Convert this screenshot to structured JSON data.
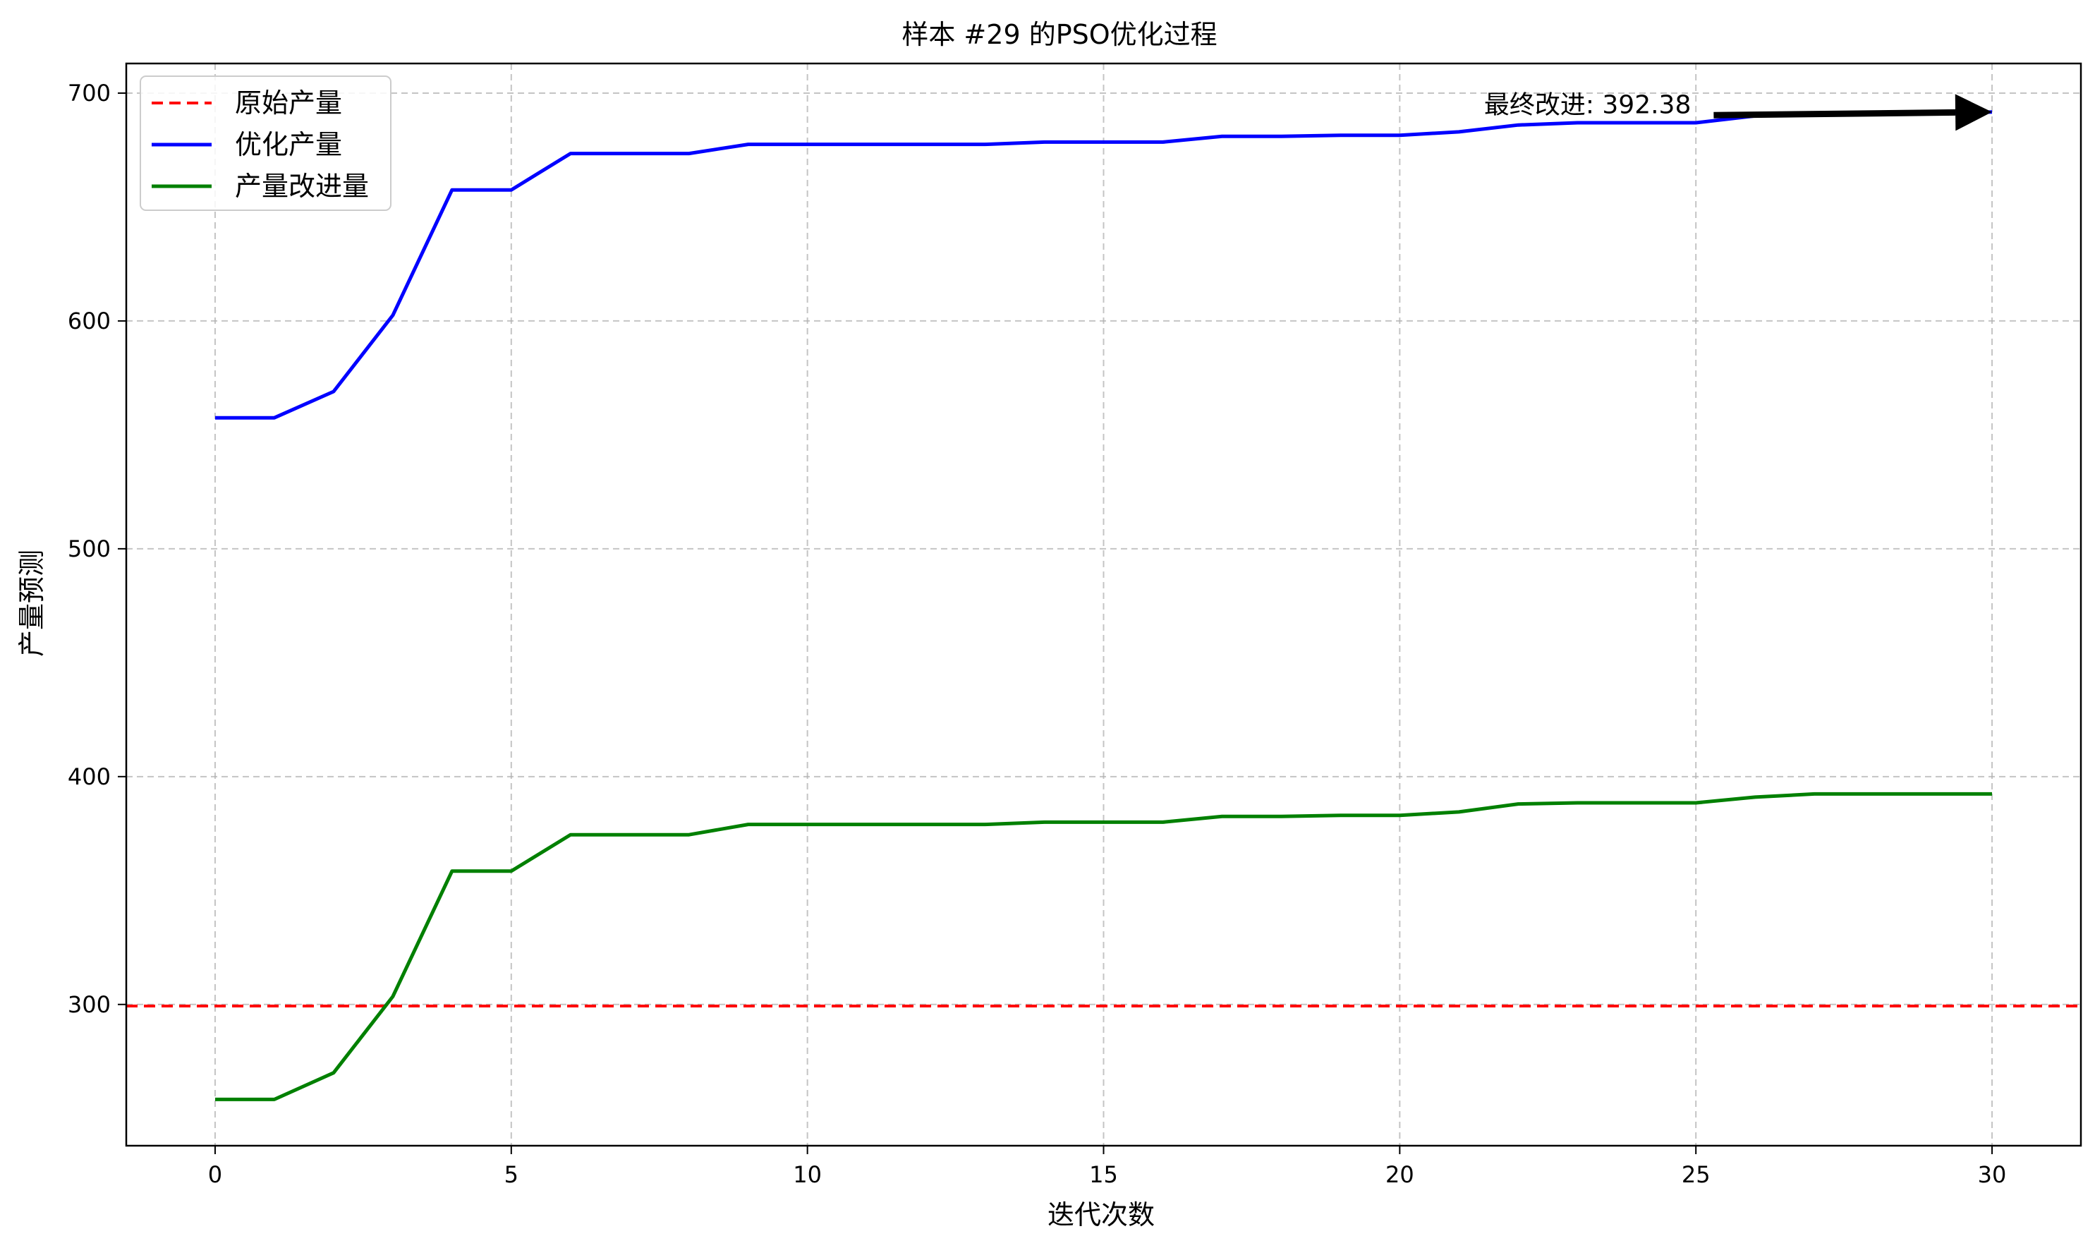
{
  "chart_data": {
    "type": "line",
    "title": "样本 #29 的PSO优化过程",
    "xlabel": "迭代次数",
    "ylabel": "产量预测",
    "xlim": [
      -1.5,
      31.5
    ],
    "ylim": [
      238,
      713
    ],
    "xticks": [
      0,
      5,
      10,
      15,
      20,
      25,
      30
    ],
    "yticks": [
      300,
      400,
      500,
      600,
      700
    ],
    "grid": true,
    "legend_position": "top-left",
    "x": [
      0,
      1,
      2,
      3,
      4,
      5,
      6,
      7,
      8,
      9,
      10,
      11,
      12,
      13,
      14,
      15,
      16,
      17,
      18,
      19,
      20,
      21,
      22,
      23,
      24,
      25,
      26,
      27,
      28,
      29,
      30
    ],
    "series": [
      {
        "name": "原始产量",
        "style": "dashed",
        "color": "#ff0000",
        "kind": "hline",
        "value": 299.3
      },
      {
        "name": "优化产量",
        "style": "solid",
        "color": "#0000ff",
        "values": [
          557.5,
          557.5,
          569,
          602.5,
          657.5,
          657.5,
          673.5,
          673.5,
          673.5,
          677.5,
          677.5,
          677.5,
          677.5,
          677.5,
          678.5,
          678.5,
          678.5,
          681,
          681,
          681.5,
          681.5,
          683,
          686,
          687,
          687,
          687,
          690,
          691,
          691,
          691,
          691.7
        ]
      },
      {
        "name": "产量改进量",
        "style": "solid",
        "color": "#008000",
        "values": [
          258.3,
          258.3,
          270,
          303.5,
          358.5,
          358.5,
          374.5,
          374.5,
          374.5,
          379,
          379,
          379,
          379,
          379,
          380,
          380,
          380,
          382.5,
          382.5,
          383,
          383,
          384.5,
          388,
          388.5,
          388.5,
          388.5,
          391,
          392.38,
          392.38,
          392.38,
          392.38
        ]
      }
    ],
    "annotation": {
      "text": "最终改进: 392.38",
      "arrow_from": [
        25.3,
        690.3
      ],
      "arrow_to": [
        30,
        691.7
      ],
      "color": "#000000"
    }
  }
}
